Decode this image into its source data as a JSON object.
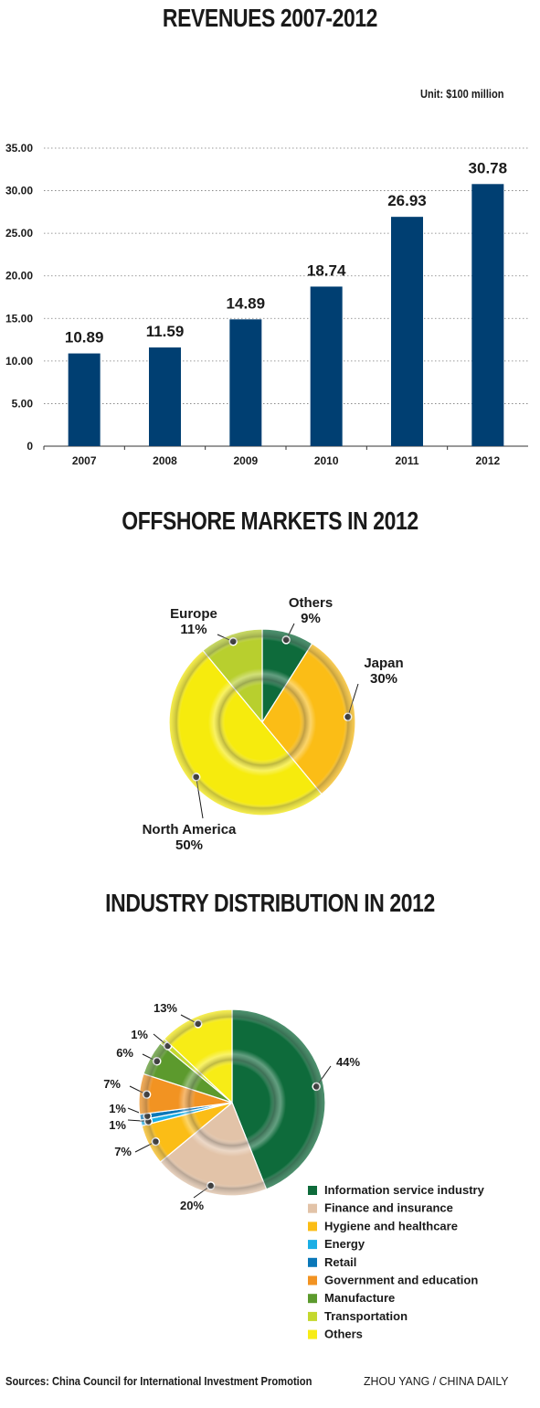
{
  "chart_data": [
    {
      "type": "bar",
      "title": "REVENUES  2007-2012",
      "unit": "Unit: $100 million",
      "categories": [
        "2007",
        "2008",
        "2009",
        "2010",
        "2011",
        "2012"
      ],
      "values": [
        10.89,
        11.59,
        14.89,
        18.74,
        26.93,
        30.78
      ],
      "value_labels": [
        "10.89",
        "11.59",
        "14.89",
        "18.74",
        "26.93",
        "30.78"
      ],
      "yticks": [
        "0",
        "5.00",
        "10.00",
        "15.00",
        "20.00",
        "25.00",
        "30.00",
        "35.00"
      ],
      "ylim": [
        0,
        35
      ],
      "grid": true,
      "color": "#003f72"
    },
    {
      "type": "pie",
      "title": "OFFSHORE MARKETS IN 2012",
      "slices": [
        {
          "name": "Others",
          "value": 9,
          "label": "9%",
          "color": "#0e6b3b"
        },
        {
          "name": "Japan",
          "value": 30,
          "label": "30%",
          "color": "#fbbd16"
        },
        {
          "name": "North America",
          "value": 50,
          "label": "50%",
          "color": "#f6eb0d"
        },
        {
          "name": "Europe",
          "value": 11,
          "label": "11%",
          "color": "#b8cf2e"
        }
      ]
    },
    {
      "type": "pie",
      "title": "INDUSTRY DISTRIBUTION IN 2012",
      "slices": [
        {
          "name": "Information service industry",
          "value": 44,
          "label": "44%",
          "color": "#0e6b3b"
        },
        {
          "name": "Finance and insurance",
          "value": 20,
          "label": "20%",
          "color": "#e2c3a8"
        },
        {
          "name": "Hygiene and healthcare",
          "value": 7,
          "label": "7%",
          "color": "#fbbd16"
        },
        {
          "name": "Energy",
          "value": 1,
          "label": "1%",
          "color": "#1aaee5"
        },
        {
          "name": "Retail",
          "value": 1,
          "label": "1%",
          "color": "#0a77b8"
        },
        {
          "name": "Government and education",
          "value": 7,
          "label": "7%",
          "color": "#f29322"
        },
        {
          "name": "Manufacture",
          "value": 6,
          "label": "6%",
          "color": "#5c9a2d"
        },
        {
          "name": "Transportation",
          "value": 1,
          "label": "1%",
          "color": "#c4d82e"
        },
        {
          "name": "Others",
          "value": 13,
          "label": "13%",
          "color": "#f7ec16"
        }
      ]
    }
  ],
  "footer": {
    "source": "Sources: China Council for International Investment Promotion",
    "credit": "ZHOU YANG / CHINA DAILY"
  }
}
